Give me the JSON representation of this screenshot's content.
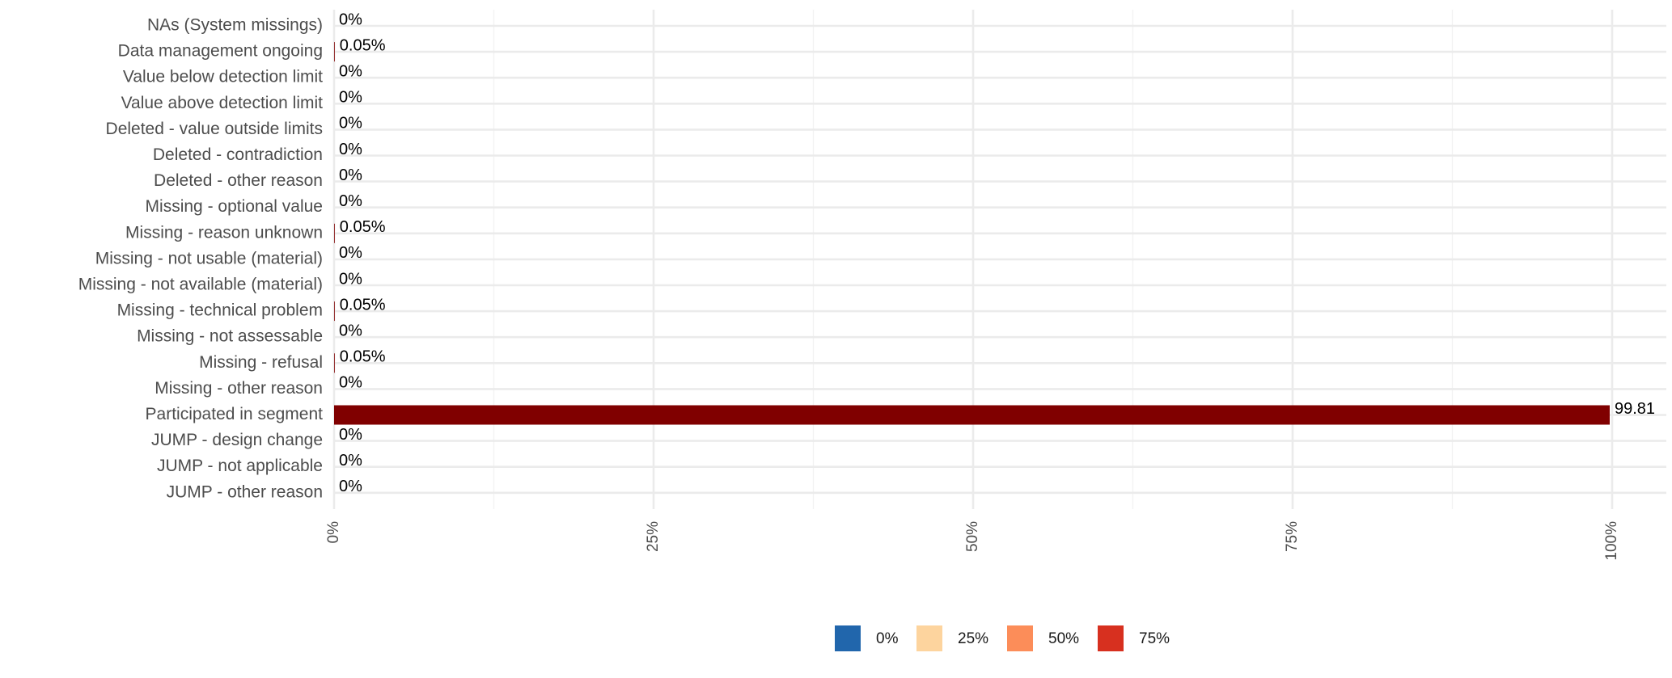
{
  "chart_data": {
    "type": "bar",
    "orientation": "horizontal",
    "categories": [
      "NAs (System missings)",
      "Data management ongoing",
      "Value below detection limit",
      "Value above detection limit",
      "Deleted - value outside limits",
      "Deleted - contradiction",
      "Deleted - other reason",
      "Missing - optional value",
      "Missing - reason unknown",
      "Missing - not usable (material)",
      "Missing - not available (material)",
      "Missing - technical problem",
      "Missing - not assessable",
      "Missing - refusal",
      "Missing - other reason",
      "Participated in segment",
      "JUMP - design change",
      "JUMP - not applicable",
      "JUMP - other reason"
    ],
    "values": [
      0,
      0.05,
      0,
      0,
      0,
      0,
      0,
      0,
      0.05,
      0,
      0,
      0.05,
      0,
      0.05,
      0,
      99.81,
      0,
      0,
      0
    ],
    "value_labels": [
      "0%",
      "0.05%",
      "0%",
      "0%",
      "0%",
      "0%",
      "0%",
      "0%",
      "0.05%",
      "0%",
      "0%",
      "0.05%",
      "0%",
      "0.05%",
      "0%",
      "99.81",
      "0%",
      "0%",
      "0%"
    ],
    "bar_color": "#800000",
    "xlim": [
      0,
      100
    ],
    "x_ticks": [
      0,
      25,
      50,
      75,
      100
    ],
    "x_tick_labels": [
      "0%",
      "25%",
      "50%",
      "75%",
      "100%"
    ],
    "grid": true,
    "xlabel": "",
    "ylabel": "",
    "legend": {
      "placement": "bottom",
      "items": [
        {
          "label": "0%",
          "color": "#2166ac"
        },
        {
          "label": "25%",
          "color": "#fdd49e"
        },
        {
          "label": "50%",
          "color": "#fc8d59"
        },
        {
          "label": "75%",
          "color": "#d7301f"
        }
      ]
    }
  }
}
